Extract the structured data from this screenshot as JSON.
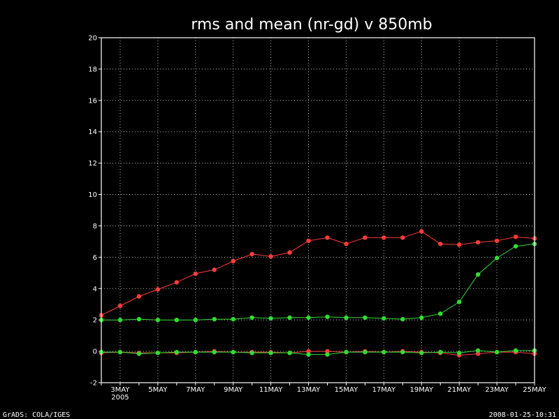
{
  "chart_data": {
    "type": "line",
    "title": "rms and mean (nr-gd) v 850mb",
    "xlabel": "",
    "ylabel": "",
    "ylim": [
      -2,
      20
    ],
    "yticks": [
      -2,
      0,
      2,
      4,
      6,
      8,
      10,
      12,
      14,
      16,
      18,
      20
    ],
    "x_range": [
      "2MAY2005",
      "25MAY2005"
    ],
    "xtick_labels": [
      "3MAY",
      "5MAY",
      "7MAY",
      "9MAY",
      "11MAY",
      "13MAY",
      "15MAY",
      "17MAY",
      "19MAY",
      "21MAY",
      "23MAY",
      "25MAY"
    ],
    "xtick_year": "2005",
    "grid": true,
    "x": [
      "2MAY",
      "3MAY",
      "4MAY",
      "5MAY",
      "6MAY",
      "7MAY",
      "8MAY",
      "9MAY",
      "10MAY",
      "11MAY",
      "12MAY",
      "13MAY",
      "14MAY",
      "15MAY",
      "16MAY",
      "17MAY",
      "18MAY",
      "19MAY",
      "20MAY",
      "21MAY",
      "22MAY",
      "23MAY",
      "24MAY",
      "25MAY"
    ],
    "series": [
      {
        "color": "#ff3c3c",
        "values": [
          2.3,
          2.9,
          3.5,
          3.95,
          4.4,
          4.95,
          5.2,
          5.75,
          6.2,
          6.05,
          6.3,
          7.05,
          7.25,
          6.85,
          7.25,
          7.25,
          7.25,
          7.65,
          6.85,
          6.8,
          6.95,
          7.05,
          7.3,
          7.2
        ]
      },
      {
        "color": "#32dc32",
        "values": [
          2.0,
          2.0,
          2.05,
          2.0,
          2.0,
          2.0,
          2.05,
          2.05,
          2.15,
          2.1,
          2.15,
          2.15,
          2.2,
          2.15,
          2.15,
          2.1,
          2.05,
          2.15,
          2.4,
          3.15,
          4.9,
          5.95,
          6.7,
          6.85
        ]
      },
      {
        "color": "#ff3c3c",
        "values": [
          -0.1,
          -0.05,
          -0.1,
          -0.1,
          -0.1,
          -0.05,
          0.0,
          -0.05,
          -0.05,
          -0.05,
          -0.1,
          0.0,
          0.0,
          -0.05,
          0.0,
          -0.05,
          0.0,
          -0.05,
          -0.1,
          -0.25,
          -0.15,
          -0.05,
          -0.05,
          -0.15
        ]
      },
      {
        "color": "#32dc32",
        "values": [
          -0.05,
          -0.05,
          -0.15,
          -0.1,
          -0.05,
          -0.05,
          -0.05,
          -0.05,
          -0.1,
          -0.1,
          -0.1,
          -0.2,
          -0.2,
          -0.05,
          -0.05,
          -0.05,
          -0.05,
          -0.1,
          -0.05,
          -0.1,
          0.05,
          -0.05,
          0.05,
          0.05
        ]
      }
    ]
  },
  "footer": {
    "left": "GrADS: COLA/IGES",
    "right": "2008-01-25-10:31"
  }
}
